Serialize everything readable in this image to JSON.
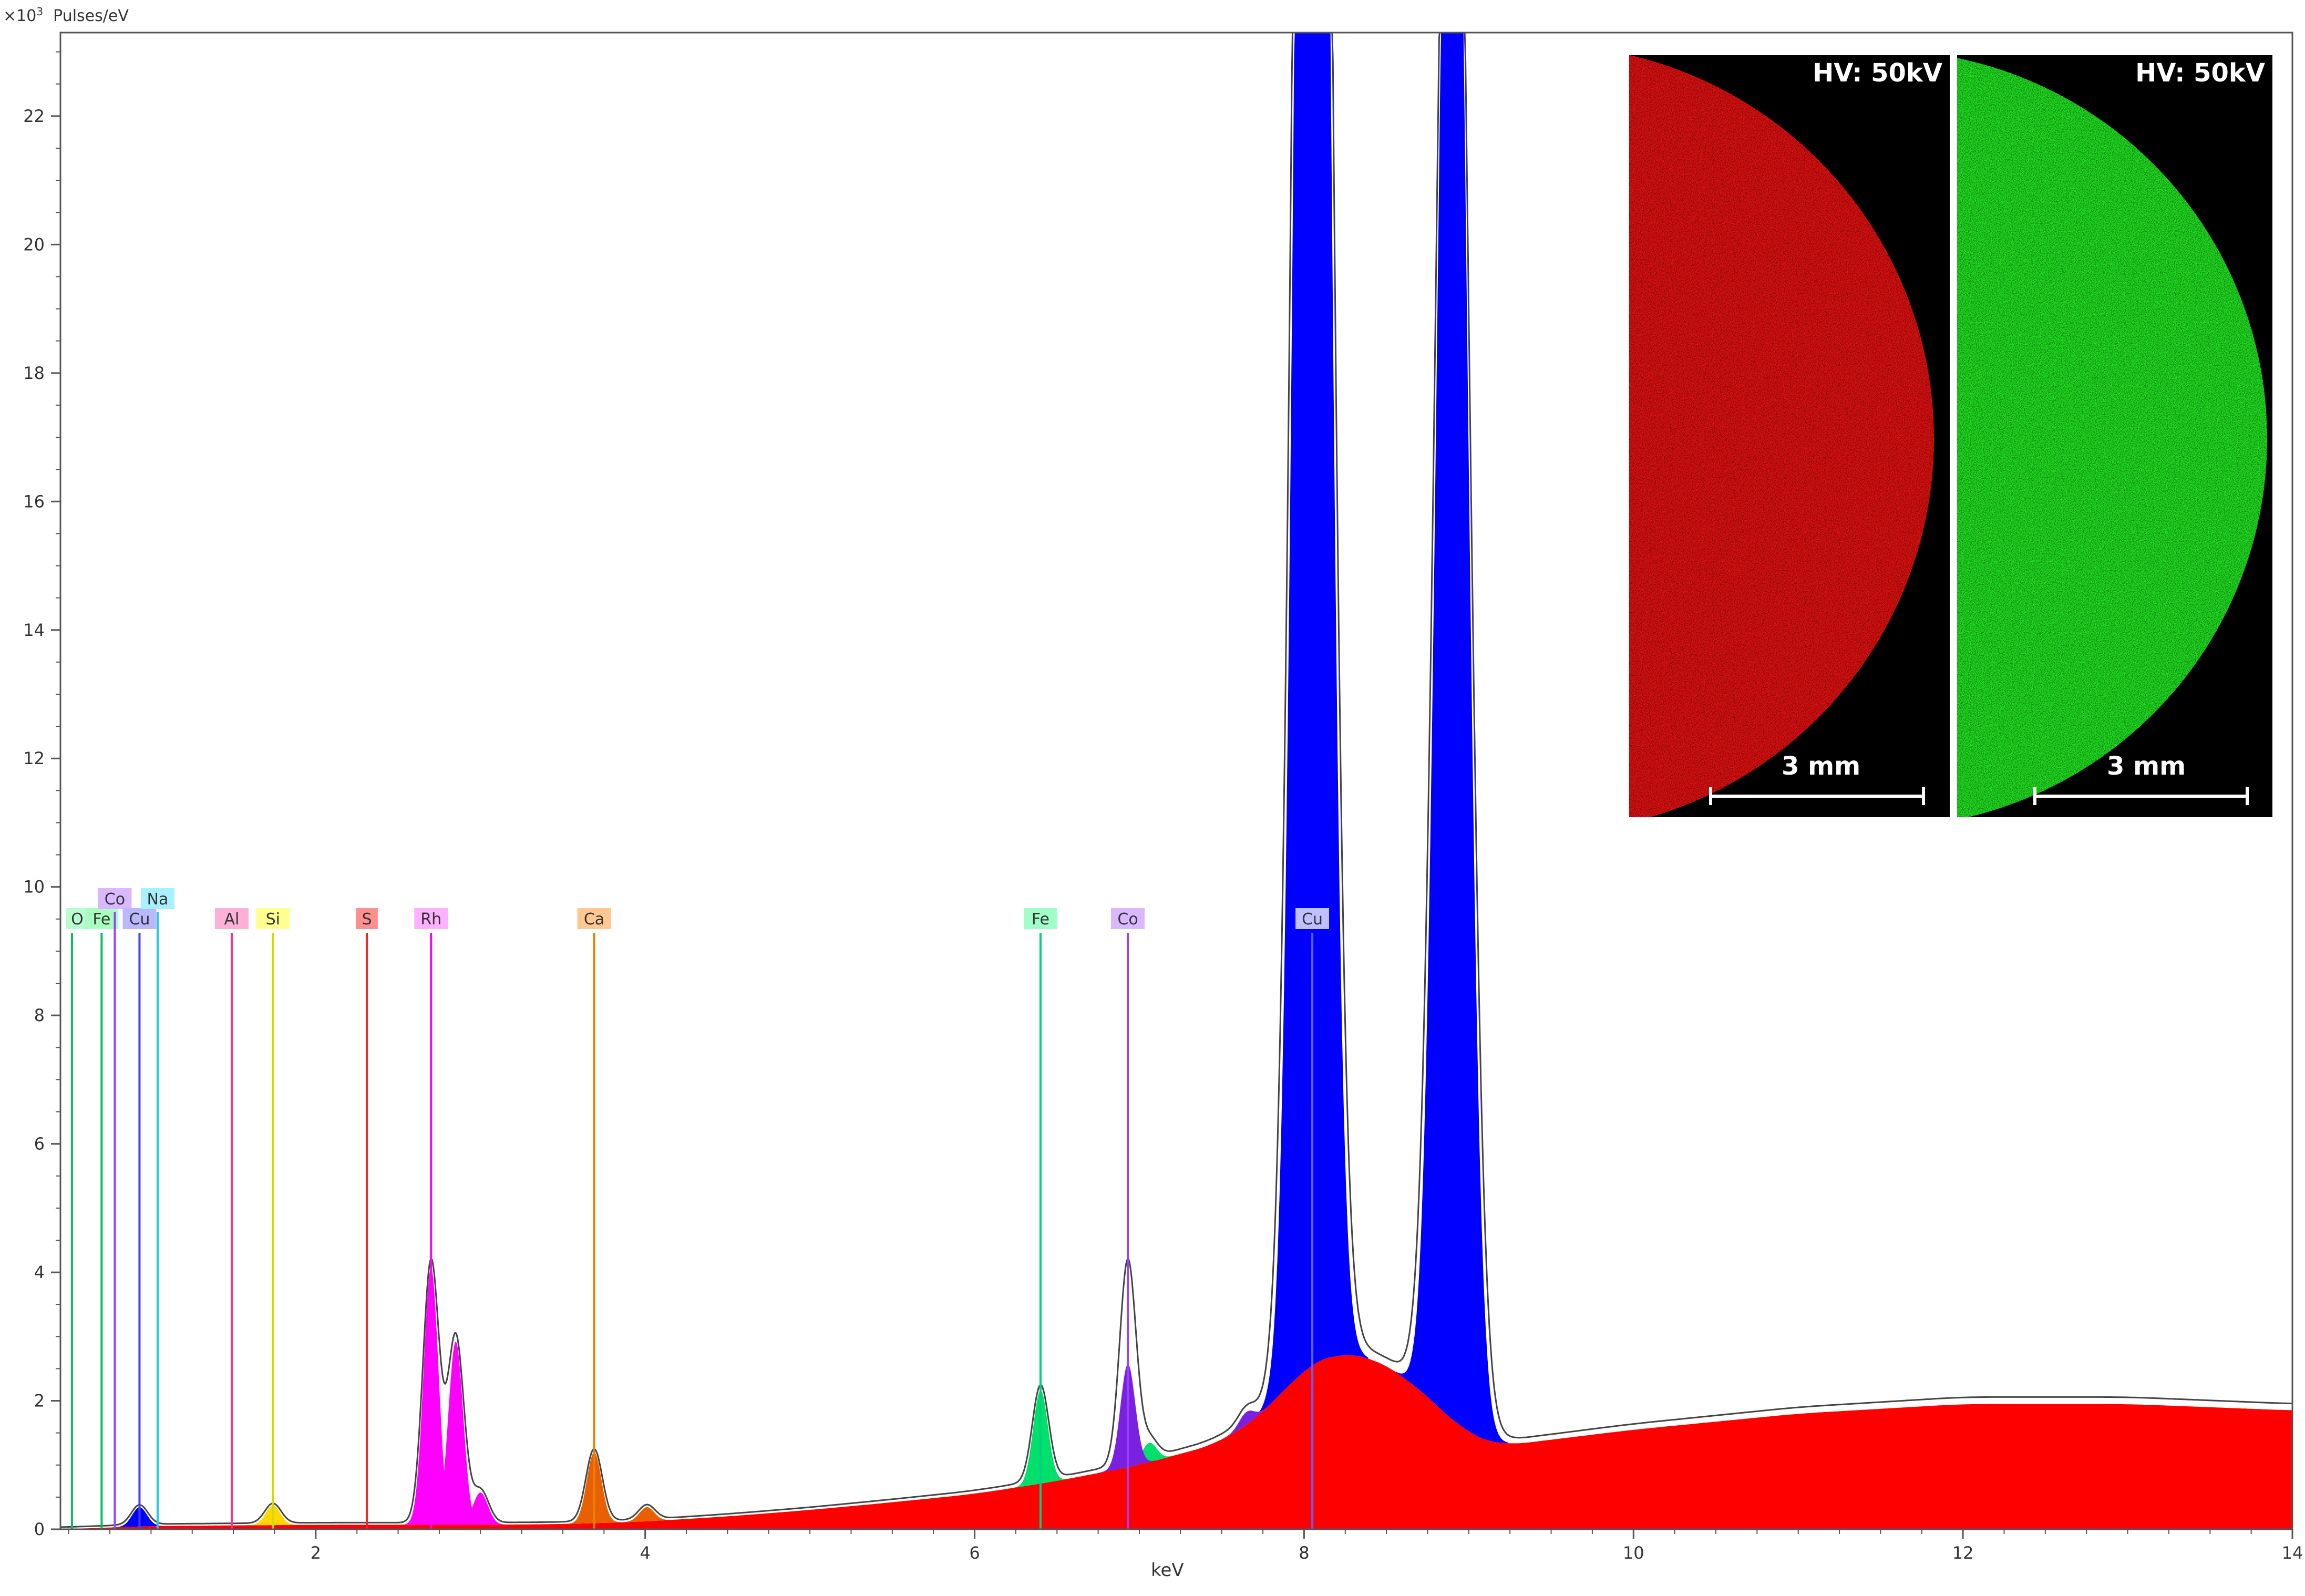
{
  "chart_data": {
    "type": "area",
    "ylabel": "Pulses/eV",
    "ylabel_exponent": "3",
    "xlabel": "keV",
    "xlim": [
      0.45,
      14.0
    ],
    "ylim": [
      0,
      23.3
    ],
    "yscale_note": "×10",
    "x_ticks": [
      2,
      4,
      6,
      8,
      10,
      12,
      14
    ],
    "y_ticks": [
      0,
      2,
      4,
      6,
      8,
      10,
      12,
      14,
      16,
      18,
      20,
      22
    ],
    "grid": false,
    "series": [
      {
        "color": "#ff0000",
        "x": [
          0.45,
          1.0,
          1.5,
          2.0,
          2.5,
          3.0,
          3.5,
          4.0,
          4.5,
          5.0,
          5.5,
          6.0,
          6.5,
          7.0,
          7.5,
          7.8,
          8.0,
          8.2,
          8.4,
          8.6,
          8.8,
          9.0,
          9.2,
          10.0,
          11.0,
          12.0,
          13.0,
          14.0
        ],
        "y": [
          0.0,
          0.05,
          0.06,
          0.07,
          0.07,
          0.07,
          0.08,
          0.12,
          0.2,
          0.3,
          0.42,
          0.55,
          0.75,
          1.0,
          1.35,
          1.9,
          2.55,
          2.75,
          2.7,
          2.4,
          1.95,
          1.45,
          1.3,
          1.55,
          1.8,
          1.95,
          1.95,
          1.85
        ]
      },
      {
        "color": "#0000ff",
        "peaks": [
          {
            "x": 8.05,
            "y": 48.0
          },
          {
            "x": 8.9,
            "y": 30.0
          },
          {
            "x": 6.93,
            "y": 1.5
          },
          {
            "x": 0.93,
            "y": 0.3
          }
        ]
      },
      {
        "color": "#ff00ff",
        "peaks": [
          {
            "x": 2.7,
            "y": 4.0
          },
          {
            "x": 2.85,
            "y": 2.85
          },
          {
            "x": 3.0,
            "y": 0.5
          }
        ]
      },
      {
        "color": "#e86000",
        "peaks": [
          {
            "x": 3.69,
            "y": 1.1
          },
          {
            "x": 4.01,
            "y": 0.22
          }
        ]
      },
      {
        "color": "#00e06a",
        "peaks": [
          {
            "x": 6.4,
            "y": 1.45
          },
          {
            "x": 7.06,
            "y": 0.3
          }
        ]
      },
      {
        "color": "#7a20e0",
        "peaks": [
          {
            "x": 6.93,
            "y": 1.6
          },
          {
            "x": 7.65,
            "y": 0.2
          }
        ]
      },
      {
        "color": "#ffd800",
        "peaks": [
          {
            "x": 1.74,
            "y": 0.3
          }
        ]
      }
    ],
    "annotations": [
      {
        "label": "O",
        "x": 0.52,
        "row": 2,
        "color": "#00c060",
        "bg": "#b8ffd0"
      },
      {
        "label": "Fe",
        "x": 0.7,
        "row": 2,
        "color": "#00c060",
        "bg": "#a8ffc0"
      },
      {
        "label": "Co",
        "x": 0.78,
        "row": 1,
        "color": "#9a40ff",
        "bg": "#d9b8ff"
      },
      {
        "label": "Cu",
        "x": 0.93,
        "row": 2,
        "color": "#4040ff",
        "bg": "#b8b8ff"
      },
      {
        "label": "Na",
        "x": 1.04,
        "row": 1,
        "color": "#20c8e0",
        "bg": "#a8f0ff"
      },
      {
        "label": "Al",
        "x": 1.49,
        "row": 2,
        "color": "#ff3090",
        "bg": "#ffb0d8"
      },
      {
        "label": "Si",
        "x": 1.74,
        "row": 2,
        "color": "#d8d800",
        "bg": "#ffff90"
      },
      {
        "label": "S",
        "x": 2.31,
        "row": 2,
        "color": "#ff2020",
        "bg": "#ff9090"
      },
      {
        "label": "Rh",
        "x": 2.7,
        "row": 2,
        "color": "#ff00ff",
        "bg": "#ffb0ff"
      },
      {
        "label": "Ca",
        "x": 3.69,
        "row": 2,
        "color": "#e88000",
        "bg": "#ffc890"
      },
      {
        "label": "Fe",
        "x": 6.4,
        "row": 2,
        "color": "#00d080",
        "bg": "#a0ffc8"
      },
      {
        "label": "Co",
        "x": 6.93,
        "row": 2,
        "color": "#9a40ff",
        "bg": "#d9b8ff"
      },
      {
        "label": "Cu",
        "x": 8.05,
        "row": 2,
        "color": "#6060ff",
        "bg": "#c0c0ff"
      }
    ]
  },
  "insets": [
    {
      "hv": "HV: 50kV",
      "scalebar": "3 mm",
      "color": "#e01010"
    },
    {
      "hv": "HV: 50kV",
      "scalebar": "3 mm",
      "color": "#20e020"
    }
  ]
}
